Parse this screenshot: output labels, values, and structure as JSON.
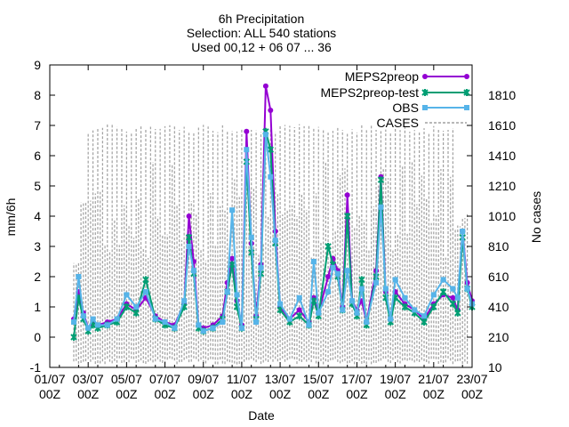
{
  "chart_data": {
    "type": "line",
    "title": [
      "6h Precipitation",
      "Selection: ALL    540 stations",
      "Used 00,12 + 06 07 ... 36"
    ],
    "xlabel": "Date",
    "ylabel": "mm/6h",
    "y2label": "No cases",
    "xlim": [
      "2023-07-01T00",
      "2023-07-23T00"
    ],
    "ylim": [
      -1,
      9
    ],
    "y2lim": [
      10,
      2010
    ],
    "x_ticks": [
      {
        "t": 0,
        "l1": "01/07",
        "l2": "00Z"
      },
      {
        "t": 2,
        "l1": "03/07",
        "l2": "00Z"
      },
      {
        "t": 4,
        "l1": "05/07",
        "l2": "00Z"
      },
      {
        "t": 6,
        "l1": "07/07",
        "l2": "00Z"
      },
      {
        "t": 8,
        "l1": "09/07",
        "l2": "00Z"
      },
      {
        "t": 10,
        "l1": "11/07",
        "l2": "00Z"
      },
      {
        "t": 12,
        "l1": "13/07",
        "l2": "00Z"
      },
      {
        "t": 14,
        "l1": "15/07",
        "l2": "00Z"
      },
      {
        "t": 16,
        "l1": "17/07",
        "l2": "00Z"
      },
      {
        "t": 18,
        "l1": "19/07",
        "l2": "00Z"
      },
      {
        "t": 20,
        "l1": "21/07",
        "l2": "00Z"
      },
      {
        "t": 22,
        "l1": "23/07",
        "l2": "00Z"
      }
    ],
    "y_ticks": [
      "-1",
      "0",
      "1",
      "2",
      "3",
      "4",
      "5",
      "6",
      "7",
      "8",
      "9"
    ],
    "y2_ticks": [
      "10",
      "210",
      "410",
      "610",
      "810",
      "1010",
      "1210",
      "1410",
      "1610",
      "1810"
    ],
    "legend_position": "top-right",
    "series": [
      {
        "name": "MEPS2preop",
        "color": "#9400d3",
        "marker": "circle",
        "t": [
          1.25,
          1.5,
          1.75,
          2.0,
          2.25,
          2.5,
          3.0,
          3.5,
          4.0,
          4.5,
          5.0,
          5.5,
          6.0,
          6.5,
          7.0,
          7.25,
          7.5,
          7.75,
          8.0,
          8.5,
          9.0,
          9.25,
          9.5,
          9.75,
          10.0,
          10.25,
          10.5,
          10.75,
          11.0,
          11.25,
          11.5,
          11.75,
          12.0,
          12.5,
          13.0,
          13.5,
          13.75,
          14.0,
          14.5,
          14.75,
          15.0,
          15.25,
          15.5,
          15.75,
          16.0,
          16.25,
          16.5,
          17.0,
          17.25,
          17.5,
          17.75,
          18.0,
          18.5,
          19.0,
          19.5,
          20.0,
          20.5,
          21.0,
          21.25,
          21.5,
          21.75,
          22.0
        ],
        "values": [
          0.6,
          1.5,
          0.8,
          0.3,
          0.5,
          0.4,
          0.5,
          0.6,
          1.1,
          0.9,
          1.3,
          0.7,
          0.5,
          0.4,
          1.1,
          4.0,
          2.5,
          0.4,
          0.3,
          0.4,
          0.7,
          1.8,
          2.6,
          1.2,
          0.4,
          6.8,
          3.1,
          0.7,
          2.4,
          8.3,
          7.5,
          3.5,
          1.0,
          0.6,
          0.9,
          0.5,
          1.3,
          0.8,
          2.0,
          2.6,
          2.2,
          1.0,
          4.7,
          1.2,
          0.9,
          1.2,
          0.5,
          2.2,
          5.3,
          1.5,
          0.6,
          1.5,
          1.1,
          0.9,
          0.6,
          1.1,
          1.4,
          1.3,
          0.9,
          3.5,
          1.8,
          1.2
        ]
      },
      {
        "name": "MEPS2preop-test",
        "color": "#009e73",
        "marker": "star",
        "t": [
          1.25,
          1.5,
          1.75,
          2.0,
          2.25,
          2.5,
          3.0,
          3.5,
          4.0,
          4.5,
          5.0,
          5.5,
          6.0,
          6.5,
          7.0,
          7.25,
          7.5,
          7.75,
          8.0,
          8.5,
          9.0,
          9.25,
          9.5,
          9.75,
          10.0,
          10.25,
          10.5,
          10.75,
          11.0,
          11.25,
          11.5,
          11.75,
          12.0,
          12.5,
          13.0,
          13.5,
          13.75,
          14.0,
          14.5,
          14.75,
          15.0,
          15.25,
          15.5,
          15.75,
          16.0,
          16.25,
          16.5,
          17.0,
          17.25,
          17.5,
          17.75,
          18.0,
          18.5,
          19.0,
          19.5,
          20.0,
          20.5,
          21.0,
          21.25,
          21.5,
          21.75,
          22.0
        ],
        "values": [
          0.0,
          1.3,
          0.6,
          0.2,
          0.4,
          0.3,
          0.4,
          0.5,
          1.0,
          0.8,
          1.9,
          0.6,
          0.4,
          0.3,
          1.0,
          3.3,
          2.1,
          0.3,
          0.2,
          0.3,
          0.6,
          1.5,
          2.4,
          1.0,
          0.3,
          5.8,
          2.8,
          0.6,
          2.1,
          6.8,
          6.2,
          3.1,
          0.9,
          0.5,
          0.7,
          0.4,
          1.2,
          0.7,
          3.0,
          2.4,
          2.0,
          0.9,
          4.0,
          1.1,
          0.7,
          1.9,
          0.4,
          2.0,
          5.2,
          1.3,
          0.5,
          1.3,
          1.0,
          0.8,
          0.5,
          1.0,
          1.5,
          1.1,
          0.8,
          3.3,
          1.6,
          1.0
        ]
      },
      {
        "name": "OBS",
        "color": "#56b4e9",
        "marker": "square",
        "t": [
          1.25,
          1.5,
          1.75,
          2.0,
          2.25,
          2.5,
          3.0,
          3.5,
          4.0,
          4.5,
          5.0,
          5.5,
          6.0,
          6.5,
          7.0,
          7.25,
          7.5,
          7.75,
          8.0,
          8.5,
          9.0,
          9.25,
          9.5,
          9.75,
          10.0,
          10.25,
          10.5,
          10.75,
          11.0,
          11.25,
          11.5,
          11.75,
          12.0,
          12.5,
          13.0,
          13.5,
          13.75,
          14.0,
          14.5,
          14.75,
          15.0,
          15.25,
          15.5,
          15.75,
          16.0,
          16.25,
          16.5,
          17.0,
          17.25,
          17.5,
          17.75,
          18.0,
          18.5,
          19.0,
          19.5,
          20.0,
          20.5,
          21.0,
          21.25,
          21.5,
          21.75,
          22.0
        ],
        "values": [
          0.5,
          2.0,
          0.7,
          0.3,
          0.6,
          0.4,
          0.4,
          0.6,
          1.4,
          1.0,
          1.5,
          0.6,
          0.5,
          0.3,
          1.2,
          3.0,
          2.2,
          0.4,
          0.2,
          0.3,
          0.5,
          1.5,
          4.2,
          1.4,
          0.3,
          6.2,
          3.3,
          0.5,
          2.3,
          6.7,
          5.3,
          3.2,
          1.1,
          0.6,
          1.3,
          0.4,
          2.5,
          0.8,
          1.5,
          2.3,
          2.1,
          0.9,
          2.2,
          1.2,
          0.8,
          1.6,
          0.5,
          1.8,
          4.3,
          1.6,
          0.6,
          1.9,
          1.3,
          0.9,
          0.7,
          1.4,
          1.9,
          1.6,
          1.3,
          3.5,
          1.6,
          1.1
        ]
      },
      {
        "name": "CASES",
        "color": "#a0a0a0",
        "marker": "none",
        "t_start": 1.25,
        "t_end": 21.75,
        "t_step": 0.25,
        "values_approx_peak": 1610
      }
    ]
  }
}
